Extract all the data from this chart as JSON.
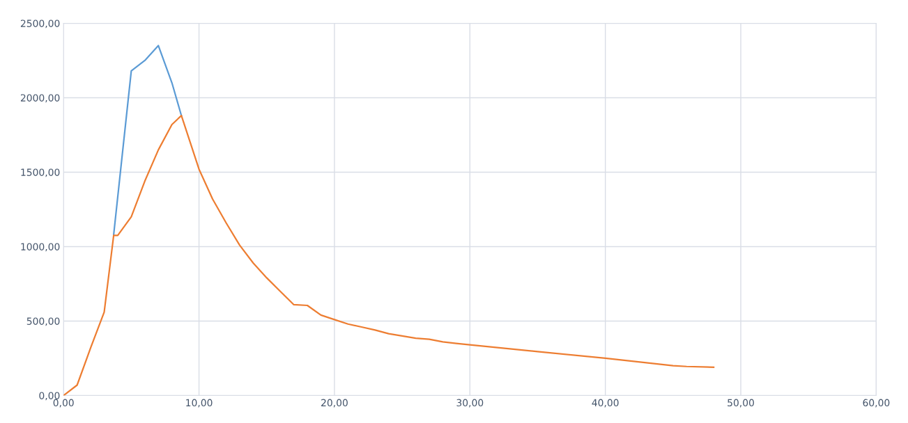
{
  "chart_data": {
    "type": "line",
    "xlim": [
      0,
      60
    ],
    "ylim": [
      0,
      2500
    ],
    "xticks": [
      {
        "value": 0,
        "label": "0,00"
      },
      {
        "value": 10,
        "label": "10,00"
      },
      {
        "value": 20,
        "label": "20,00"
      },
      {
        "value": 30,
        "label": "30,00"
      },
      {
        "value": 40,
        "label": "40,00"
      },
      {
        "value": 50,
        "label": "50,00"
      },
      {
        "value": 60,
        "label": "60,00"
      }
    ],
    "yticks": [
      {
        "value": 0,
        "label": "0,00"
      },
      {
        "value": 500,
        "label": "500,00"
      },
      {
        "value": 1000,
        "label": "1000,00"
      },
      {
        "value": 1500,
        "label": "1500,00"
      },
      {
        "value": 2000,
        "label": "2000,00"
      },
      {
        "value": 2500,
        "label": "2500,00"
      }
    ],
    "grid": true,
    "marker": "none",
    "line_style": "solid",
    "series": [
      {
        "color": "#5b9bd5",
        "x": [
          3.7,
          5,
          6,
          7,
          8,
          8.7
        ],
        "values": [
          1080,
          2180,
          2250,
          2350,
          2100,
          1880
        ]
      },
      {
        "color": "#ed7d31",
        "x": [
          0,
          1,
          2,
          3,
          3.7,
          4,
          5,
          6,
          7,
          8,
          8.7,
          10,
          11,
          12,
          13,
          14,
          15,
          16,
          17,
          18,
          19,
          20,
          21,
          22,
          23,
          24,
          25,
          26,
          27,
          28,
          29,
          30,
          35,
          40,
          45,
          46,
          48
        ],
        "values": [
          0,
          70,
          320,
          560,
          1075,
          1075,
          1200,
          1440,
          1650,
          1820,
          1880,
          1520,
          1320,
          1160,
          1010,
          890,
          790,
          700,
          610,
          605,
          540,
          510,
          480,
          460,
          440,
          415,
          400,
          385,
          378,
          360,
          350,
          340,
          295,
          250,
          200,
          195,
          190
        ]
      }
    ]
  }
}
